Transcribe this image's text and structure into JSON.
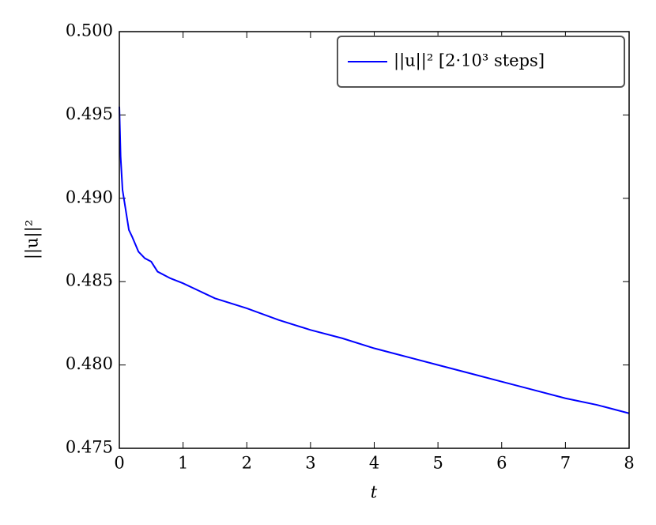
{
  "chart_data": {
    "type": "line",
    "x_label": "t",
    "y_label": "||u||²",
    "x": [
      0,
      0.02,
      0.05,
      0.1,
      0.15,
      0.2,
      0.3,
      0.4,
      0.5,
      0.6,
      0.8,
      1.0,
      1.5,
      2.0,
      2.5,
      3.0,
      3.5,
      4.0,
      4.5,
      5.0,
      5.5,
      6.0,
      6.5,
      7.0,
      7.5,
      8.0
    ],
    "series": [
      {
        "name": "||u||²  [2·10³  steps]",
        "color": "#0000ff",
        "values": [
          0.4955,
          0.4925,
          0.4905,
          0.4893,
          0.4881,
          0.4877,
          0.4868,
          0.4864,
          0.4862,
          0.4856,
          0.4852,
          0.4849,
          0.484,
          0.4834,
          0.4827,
          0.4821,
          0.4816,
          0.481,
          0.4805,
          0.48,
          0.4795,
          0.479,
          0.4785,
          0.478,
          0.4776,
          0.4771
        ]
      }
    ],
    "xlim": [
      0,
      8
    ],
    "ylim": [
      0.475,
      0.5
    ],
    "xticks": [
      0,
      1,
      2,
      3,
      4,
      5,
      6,
      7,
      8
    ],
    "yticks": [
      0.475,
      {
        "value": 0.48,
        "label": "0.480"
      },
      0.485,
      {
        "value": 0.49,
        "label": "0.490"
      },
      0.495,
      {
        "value": 0.5,
        "label": "0.500"
      }
    ],
    "grid": false,
    "legend": "upper right"
  }
}
